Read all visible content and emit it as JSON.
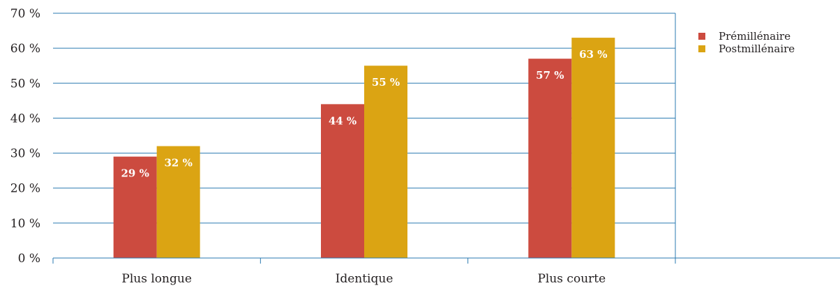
{
  "chart_data": {
    "type": "bar",
    "categories": [
      "Plus longue",
      "Identique",
      "Plus courte"
    ],
    "series": [
      {
        "name": "Prémillénaire",
        "values": [
          29,
          44,
          57
        ],
        "labels": [
          "29 %",
          "44 %",
          "57 %"
        ],
        "color": "#cc4b3f"
      },
      {
        "name": "Postmillénaire",
        "values": [
          32,
          55,
          63
        ],
        "labels": [
          "32 %",
          "55 %",
          "63 %"
        ],
        "color": "#dba413"
      }
    ],
    "y_ticks": [
      "0 %",
      "10 %",
      "20 %",
      "30 %",
      "40 %",
      "50 %",
      "60 %",
      "70 %"
    ],
    "y_tick_values": [
      0,
      10,
      20,
      30,
      40,
      50,
      60,
      70
    ],
    "ylim": [
      0,
      70
    ],
    "grid": true,
    "grid_color": "#2a7ab0",
    "legend_position": "top-right",
    "title": "",
    "xlabel": "",
    "ylabel": ""
  }
}
